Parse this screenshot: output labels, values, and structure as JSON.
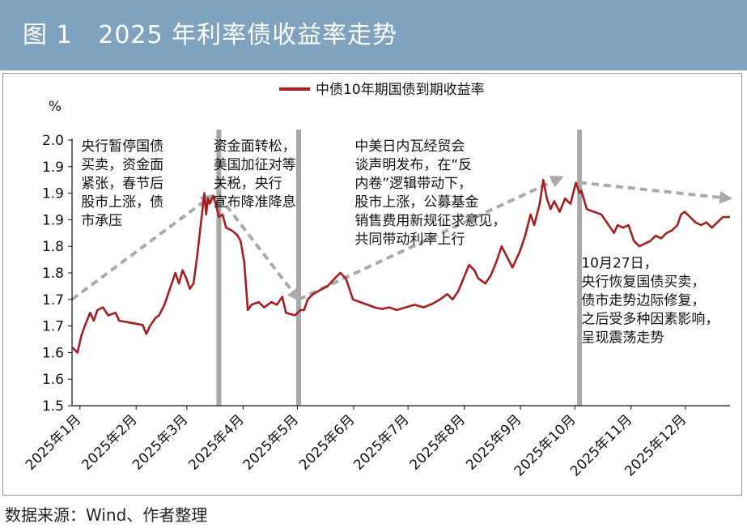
{
  "header": {
    "title": "图 1   2025 年利率债收益率走势"
  },
  "source": "数据来源：Wind、作者整理",
  "colors": {
    "header_bg": "#7fa3bf",
    "line": "#a51e22",
    "trend_arrow": "#aaaaaa",
    "event_bar": "#a8a8a8"
  },
  "chart_data": {
    "type": "line",
    "ylabel": "%",
    "ylim": [
      1.5,
      2.0
    ],
    "y_ticks": [
      1.5,
      1.55,
      1.6,
      1.65,
      1.7,
      1.75,
      1.8,
      1.85,
      1.9,
      1.95,
      2.0
    ],
    "y_tick_labels": [
      "1.5",
      "1.6",
      "1.6",
      "1.7",
      "1.7",
      "1.8",
      "1.8",
      "1.9",
      "1.9",
      "1.9",
      "2.0"
    ],
    "x_tick_labels": [
      "2025年1月",
      "2025年2月",
      "2025年3月",
      "2025年4月",
      "2025年5月",
      "2025年6月",
      "2025年7月",
      "2025年8月",
      "2025年9月",
      "2025年10月",
      "2025年11月",
      "2025年12月"
    ],
    "x_domain": [
      "2025-01-02",
      "2025-12-31"
    ],
    "grid": false,
    "legend_position": "top-center",
    "series": [
      {
        "name": "中债10年期国债到期收益率",
        "points": [
          [
            "2025-01-02",
            1.61
          ],
          [
            "2025-01-05",
            1.6
          ],
          [
            "2025-01-07",
            1.63
          ],
          [
            "2025-01-09",
            1.65
          ],
          [
            "2025-01-12",
            1.675
          ],
          [
            "2025-01-14",
            1.66
          ],
          [
            "2025-01-16",
            1.68
          ],
          [
            "2025-01-19",
            1.685
          ],
          [
            "2025-01-22",
            1.67
          ],
          [
            "2025-01-26",
            1.675
          ],
          [
            "2025-01-28",
            1.66
          ],
          [
            "2025-02-05",
            1.655
          ],
          [
            "2025-02-10",
            1.652
          ],
          [
            "2025-02-12",
            1.635
          ],
          [
            "2025-02-14",
            1.65
          ],
          [
            "2025-02-17",
            1.665
          ],
          [
            "2025-02-19",
            1.67
          ],
          [
            "2025-02-22",
            1.69
          ],
          [
            "2025-02-25",
            1.72
          ],
          [
            "2025-02-28",
            1.75
          ],
          [
            "2025-03-02",
            1.73
          ],
          [
            "2025-03-04",
            1.755
          ],
          [
            "2025-03-06",
            1.74
          ],
          [
            "2025-03-08",
            1.72
          ],
          [
            "2025-03-10",
            1.73
          ],
          [
            "2025-03-12",
            1.78
          ],
          [
            "2025-03-14",
            1.84
          ],
          [
            "2025-03-16",
            1.9
          ],
          [
            "2025-03-17",
            1.86
          ],
          [
            "2025-03-18",
            1.89
          ],
          [
            "2025-03-19",
            1.88
          ],
          [
            "2025-03-21",
            1.895
          ],
          [
            "2025-03-23",
            1.87
          ],
          [
            "2025-03-24",
            1.855
          ],
          [
            "2025-03-26",
            1.86
          ],
          [
            "2025-03-28",
            1.835
          ],
          [
            "2025-03-31",
            1.83
          ],
          [
            "2025-04-03",
            1.822
          ],
          [
            "2025-04-05",
            1.81
          ],
          [
            "2025-04-07",
            1.77
          ],
          [
            "2025-04-09",
            1.68
          ],
          [
            "2025-04-11",
            1.69
          ],
          [
            "2025-04-15",
            1.695
          ],
          [
            "2025-04-18",
            1.685
          ],
          [
            "2025-04-22",
            1.695
          ],
          [
            "2025-04-25",
            1.69
          ],
          [
            "2025-04-28",
            1.705
          ],
          [
            "2025-04-30",
            1.675
          ],
          [
            "2025-05-05",
            1.67
          ],
          [
            "2025-05-08",
            1.68
          ],
          [
            "2025-05-10",
            1.68
          ],
          [
            "2025-05-12",
            1.7
          ],
          [
            "2025-05-15",
            1.71
          ],
          [
            "2025-05-20",
            1.72
          ],
          [
            "2025-05-23",
            1.725
          ],
          [
            "2025-05-27",
            1.74
          ],
          [
            "2025-05-30",
            1.75
          ],
          [
            "2025-06-02",
            1.74
          ],
          [
            "2025-06-04",
            1.72
          ],
          [
            "2025-06-06",
            1.7
          ],
          [
            "2025-06-10",
            1.695
          ],
          [
            "2025-06-14",
            1.69
          ],
          [
            "2025-06-18",
            1.685
          ],
          [
            "2025-06-22",
            1.682
          ],
          [
            "2025-06-26",
            1.685
          ],
          [
            "2025-06-30",
            1.68
          ],
          [
            "2025-07-05",
            1.685
          ],
          [
            "2025-07-10",
            1.69
          ],
          [
            "2025-07-15",
            1.685
          ],
          [
            "2025-07-20",
            1.692
          ],
          [
            "2025-07-24",
            1.7
          ],
          [
            "2025-07-28",
            1.71
          ],
          [
            "2025-07-31",
            1.7
          ],
          [
            "2025-08-03",
            1.715
          ],
          [
            "2025-08-06",
            1.74
          ],
          [
            "2025-08-09",
            1.765
          ],
          [
            "2025-08-12",
            1.755
          ],
          [
            "2025-08-14",
            1.74
          ],
          [
            "2025-08-18",
            1.73
          ],
          [
            "2025-08-21",
            1.745
          ],
          [
            "2025-08-24",
            1.77
          ],
          [
            "2025-08-27",
            1.8
          ],
          [
            "2025-08-30",
            1.78
          ],
          [
            "2025-09-02",
            1.76
          ],
          [
            "2025-09-06",
            1.79
          ],
          [
            "2025-09-09",
            1.82
          ],
          [
            "2025-09-12",
            1.86
          ],
          [
            "2025-09-14",
            1.84
          ],
          [
            "2025-09-17",
            1.88
          ],
          [
            "2025-09-19",
            1.925
          ],
          [
            "2025-09-21",
            1.89
          ],
          [
            "2025-09-23",
            1.87
          ],
          [
            "2025-09-25",
            1.885
          ],
          [
            "2025-09-28",
            1.865
          ],
          [
            "2025-10-01",
            1.89
          ],
          [
            "2025-10-04",
            1.88
          ],
          [
            "2025-10-07",
            1.92
          ],
          [
            "2025-10-09",
            1.9
          ],
          [
            "2025-10-10",
            1.905
          ],
          [
            "2025-10-13",
            1.87
          ],
          [
            "2025-10-17",
            1.865
          ],
          [
            "2025-10-21",
            1.86
          ],
          [
            "2025-10-23",
            1.85
          ],
          [
            "2025-10-26",
            1.835
          ],
          [
            "2025-10-28",
            1.825
          ],
          [
            "2025-10-30",
            1.84
          ],
          [
            "2025-11-02",
            1.835
          ],
          [
            "2025-11-05",
            1.84
          ],
          [
            "2025-11-08",
            1.81
          ],
          [
            "2025-11-11",
            1.8
          ],
          [
            "2025-11-14",
            1.805
          ],
          [
            "2025-11-17",
            1.81
          ],
          [
            "2025-11-20",
            1.82
          ],
          [
            "2025-11-23",
            1.815
          ],
          [
            "2025-11-26",
            1.825
          ],
          [
            "2025-11-29",
            1.83
          ],
          [
            "2025-12-02",
            1.84
          ],
          [
            "2025-12-04",
            1.86
          ],
          [
            "2025-12-06",
            1.865
          ],
          [
            "2025-12-09",
            1.855
          ],
          [
            "2025-12-12",
            1.845
          ],
          [
            "2025-12-15",
            1.84
          ],
          [
            "2025-12-18",
            1.845
          ],
          [
            "2025-12-21",
            1.835
          ],
          [
            "2025-12-24",
            1.845
          ],
          [
            "2025-12-27",
            1.855
          ],
          [
            "2025-12-31",
            1.855
          ]
        ]
      }
    ],
    "event_lines": [
      "2025-03-24",
      "2025-05-07",
      "2025-10-09"
    ],
    "trend_arrows": [
      {
        "from": [
          "2025-01-02",
          1.7
        ],
        "to": [
          "2025-03-20",
          1.895
        ]
      },
      {
        "from": [
          "2025-03-24",
          1.895
        ],
        "to": [
          "2025-05-07",
          1.7
        ]
      },
      {
        "from": [
          "2025-05-07",
          1.7
        ],
        "to": [
          "2025-09-29",
          1.93
        ]
      },
      {
        "from": [
          "2025-10-09",
          1.92
        ],
        "to": [
          "2025-12-31",
          1.89
        ]
      }
    ],
    "annotations": [
      {
        "anchor_date": "2025-01-07",
        "anchor_y": 1.98,
        "lines": [
          "央行暂停国债",
          "买卖，资金面",
          "紧张，春节后",
          "股市上涨，债",
          "市承压"
        ]
      },
      {
        "anchor_date": "2025-03-21",
        "anchor_y": 1.98,
        "lines": [
          "资金面转松，",
          "美国加征对等",
          "关税，央行",
          "宣布降准降息"
        ]
      },
      {
        "anchor_date": "2025-06-07",
        "anchor_y": 1.98,
        "lines": [
          "中美日内瓦经贸会",
          "谈声明发布，在“反",
          "内卷”逻辑带动下，",
          "股市上涨，公募基金",
          "销售费用新规征求意见，",
          "共同带动利率上行"
        ]
      },
      {
        "anchor_date": "2025-10-10",
        "anchor_y": 1.76,
        "lines": [
          "10月27日，",
          "央行恢复国债买卖，",
          "债市走势边际修复，",
          "之后受多种因素影响，",
          "呈现震荡走势"
        ]
      }
    ]
  }
}
